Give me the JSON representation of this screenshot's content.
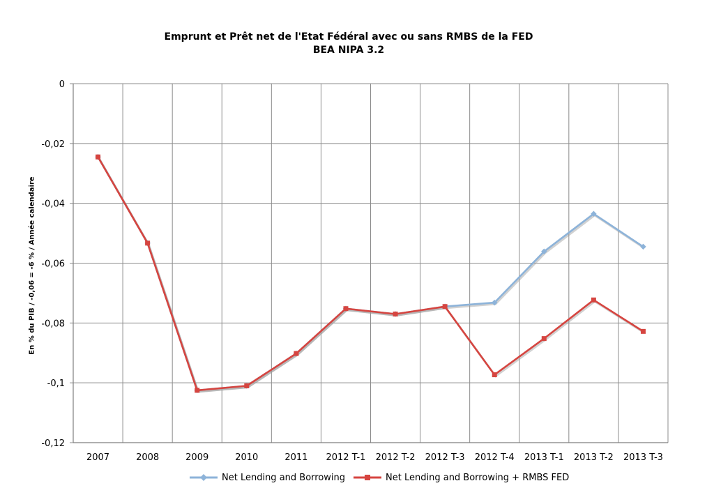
{
  "chart_data": {
    "type": "line",
    "title": "Emprunt  et Prêt net de l'Etat Fédéral avec ou sans RMBS de la FED",
    "subtitle": "BEA NIPA 3.2",
    "xlabel": "",
    "ylabel": "En % du PIB / -0,06 = -6 %  /  Année calendaire",
    "categories": [
      "2007",
      "2008",
      "2009",
      "2010",
      "2011",
      "2012 T-1",
      "2012 T-2",
      "2012 T-3",
      "2012 T-4",
      "2013 T-1",
      "2013 T-2",
      "2013 T-3"
    ],
    "ylim": [
      -0.12,
      0
    ],
    "yticks": [
      0,
      -0.02,
      -0.04,
      -0.06,
      -0.08,
      -0.1,
      -0.12
    ],
    "ytick_labels": [
      "0",
      "-0,02",
      "-0,04",
      "-0,06",
      "-0,08",
      "-0,1",
      "-0,12"
    ],
    "grid": true,
    "legend_position": "bottom",
    "series": [
      {
        "name": "Net Lending and Borrowing",
        "color": "#8DB3D9",
        "marker": "diamond",
        "values": [
          -0.0245,
          -0.0533,
          -0.1025,
          -0.101,
          -0.0902,
          -0.0752,
          -0.077,
          -0.0745,
          -0.0732,
          -0.0561,
          -0.0435,
          -0.0545
        ]
      },
      {
        "name": "Net Lending and Borrowing + RMBS FED",
        "color": "#D64540",
        "marker": "square",
        "values": [
          -0.0245,
          -0.0533,
          -0.1025,
          -0.101,
          -0.0902,
          -0.0752,
          -0.077,
          -0.0745,
          -0.0973,
          -0.0852,
          -0.0723,
          -0.0828
        ]
      }
    ]
  }
}
